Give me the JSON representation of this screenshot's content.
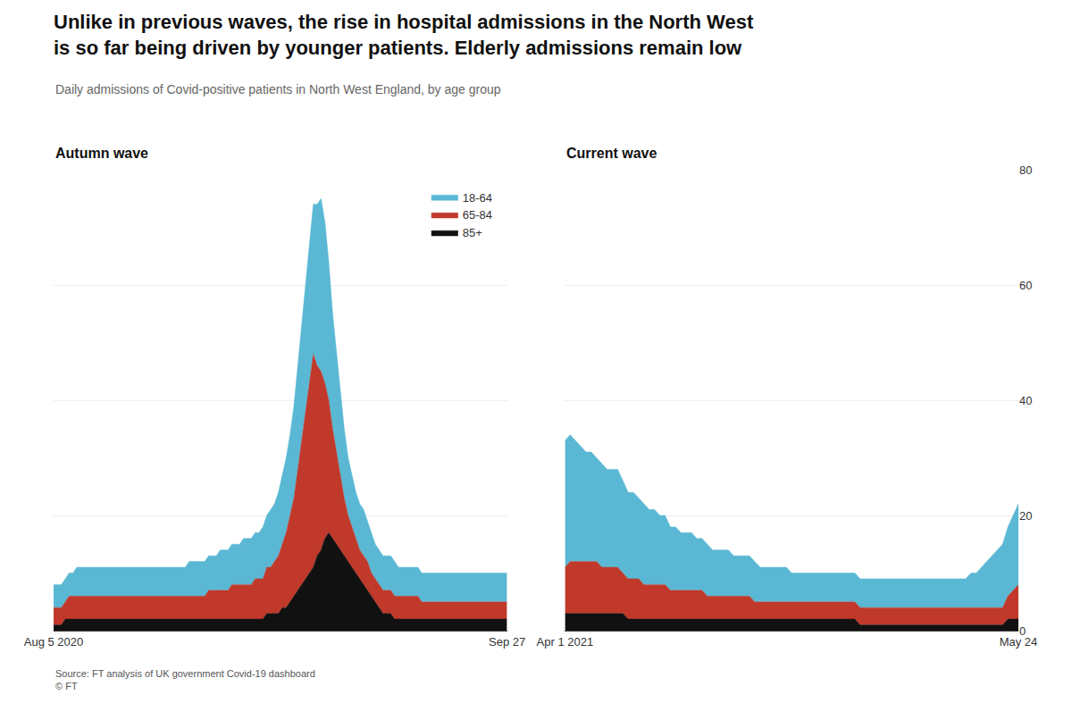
{
  "title": "Unlike in previous waves, the rise in hospital admissions in the North West\nis so far being driven by younger patients. Elderly admissions remain low",
  "subtitle": "Daily admissions of Covid-positive patients in North West England, by age group",
  "annotations": [
    "Source: FT analysis of UK government Covid-19 dashboard\n© FT"
  ],
  "chart_data": [
    {
      "type": "area",
      "stacked": true,
      "title": "Autumn wave",
      "xlim": [
        0,
        117
      ],
      "xticks": [
        {
          "value": 0,
          "label": "Aug 5 2020"
        },
        {
          "value": 117,
          "label": "Sep 27"
        }
      ],
      "ylim": [
        0,
        80
      ],
      "yticks": [
        0,
        20,
        40,
        60,
        80
      ],
      "grid": true,
      "tick_labels": "x",
      "legend": "upper right",
      "series": [
        {
          "name": "85+",
          "color": "#111111",
          "values": [
            1,
            1,
            1,
            2,
            2,
            2,
            2,
            2,
            2,
            2,
            2,
            2,
            2,
            2,
            2,
            2,
            2,
            2,
            2,
            2,
            2,
            2,
            2,
            2,
            2,
            2,
            2,
            2,
            2,
            2,
            2,
            2,
            2,
            2,
            2,
            2,
            2,
            2,
            2,
            2,
            2,
            2,
            2,
            2,
            2,
            2,
            2,
            2,
            2,
            2,
            2,
            2,
            2,
            2,
            2,
            3,
            3,
            3,
            3,
            4,
            4,
            5,
            6,
            7,
            8,
            9,
            10,
            11,
            13,
            14,
            16,
            17,
            16,
            15,
            14,
            13,
            12,
            11,
            10,
            9,
            8,
            7,
            6,
            5,
            4,
            3,
            3,
            3,
            2,
            2,
            2,
            2,
            2,
            2,
            2,
            2,
            2,
            2,
            2,
            2,
            2,
            2,
            2,
            2,
            2,
            2,
            2,
            2,
            2,
            2,
            2,
            2,
            2,
            2,
            2,
            2,
            2,
            2
          ]
        },
        {
          "name": "65-84",
          "color": "#c0392b",
          "values": [
            3,
            3,
            3,
            3,
            4,
            4,
            4,
            4,
            4,
            4,
            4,
            4,
            4,
            4,
            4,
            4,
            4,
            4,
            4,
            4,
            4,
            4,
            4,
            4,
            4,
            4,
            4,
            4,
            4,
            4,
            4,
            4,
            4,
            4,
            4,
            4,
            4,
            4,
            4,
            4,
            5,
            5,
            5,
            5,
            5,
            5,
            6,
            6,
            6,
            6,
            6,
            6,
            7,
            7,
            7,
            8,
            8,
            9,
            10,
            11,
            13,
            15,
            17,
            21,
            25,
            29,
            33,
            37,
            33,
            31,
            27,
            23,
            19,
            16,
            13,
            10,
            8,
            7,
            6,
            5,
            5,
            5,
            4,
            4,
            4,
            4,
            4,
            4,
            4,
            4,
            4,
            4,
            4,
            4,
            4,
            3,
            3,
            3,
            3,
            3,
            3,
            3,
            3,
            3,
            3,
            3,
            3,
            3,
            3,
            3,
            3,
            3,
            3,
            3,
            3,
            3,
            3,
            3
          ]
        },
        {
          "name": "18-64",
          "color": "#5bb8d4",
          "values": [
            4,
            4,
            4,
            4,
            4,
            4,
            5,
            5,
            5,
            5,
            5,
            5,
            5,
            5,
            5,
            5,
            5,
            5,
            5,
            5,
            5,
            5,
            5,
            5,
            5,
            5,
            5,
            5,
            5,
            5,
            5,
            5,
            5,
            5,
            5,
            6,
            6,
            6,
            6,
            6,
            6,
            6,
            6,
            7,
            7,
            7,
            7,
            7,
            7,
            8,
            8,
            8,
            8,
            8,
            9,
            9,
            10,
            10,
            11,
            12,
            13,
            14,
            16,
            18,
            20,
            22,
            24,
            26,
            28,
            30,
            28,
            24,
            20,
            17,
            14,
            12,
            10,
            9,
            8,
            8,
            8,
            7,
            7,
            6,
            6,
            6,
            6,
            6,
            6,
            5,
            5,
            5,
            5,
            5,
            5,
            5,
            5,
            5,
            5,
            5,
            5,
            5,
            5,
            5,
            5,
            5,
            5,
            5,
            5,
            5,
            5,
            5,
            5,
            5,
            5,
            5,
            5,
            5
          ]
        }
      ]
    },
    {
      "type": "area",
      "stacked": true,
      "title": "Current wave",
      "xlim": [
        0,
        86
      ],
      "xticks": [
        {
          "value": 0,
          "label": "Apr 1 2021"
        },
        {
          "value": 86,
          "label": "May 24"
        }
      ],
      "ylim": [
        0,
        80
      ],
      "yticks": [
        0,
        20,
        40,
        60,
        80
      ],
      "grid": true,
      "series": [
        {
          "color": "#111111",
          "values": [
            3,
            3,
            3,
            3,
            3,
            3,
            3,
            3,
            3,
            3,
            3,
            3,
            2,
            2,
            2,
            2,
            2,
            2,
            2,
            2,
            2,
            2,
            2,
            2,
            2,
            2,
            2,
            2,
            2,
            2,
            2,
            2,
            2,
            2,
            2,
            2,
            2,
            2,
            2,
            2,
            2,
            2,
            2,
            2,
            2,
            2,
            2,
            2,
            2,
            2,
            2,
            2,
            2,
            2,
            2,
            2,
            1,
            1,
            1,
            1,
            1,
            1,
            1,
            1,
            1,
            1,
            1,
            1,
            1,
            1,
            1,
            1,
            1,
            1,
            1,
            1,
            1,
            1,
            1,
            1,
            1,
            1,
            1,
            1,
            2,
            2,
            2
          ]
        },
        {
          "color": "#c0392b",
          "values": [
            8,
            9,
            9,
            9,
            9,
            9,
            9,
            8,
            8,
            8,
            8,
            7,
            7,
            7,
            7,
            6,
            6,
            6,
            6,
            6,
            5,
            5,
            5,
            5,
            5,
            5,
            5,
            4,
            4,
            4,
            4,
            4,
            4,
            4,
            4,
            4,
            3,
            3,
            3,
            3,
            3,
            3,
            3,
            3,
            3,
            3,
            3,
            3,
            3,
            3,
            3,
            3,
            3,
            3,
            3,
            3,
            3,
            3,
            3,
            3,
            3,
            3,
            3,
            3,
            3,
            3,
            3,
            3,
            3,
            3,
            3,
            3,
            3,
            3,
            3,
            3,
            3,
            3,
            3,
            3,
            3,
            3,
            3,
            3,
            4,
            5,
            6
          ]
        },
        {
          "color": "#5bb8d4",
          "values": [
            22,
            22,
            21,
            20,
            19,
            19,
            18,
            18,
            17,
            17,
            17,
            16,
            15,
            15,
            14,
            14,
            13,
            13,
            12,
            12,
            11,
            11,
            10,
            10,
            10,
            9,
            9,
            9,
            8,
            8,
            8,
            8,
            7,
            7,
            7,
            7,
            7,
            6,
            6,
            6,
            6,
            6,
            6,
            5,
            5,
            5,
            5,
            5,
            5,
            5,
            5,
            5,
            5,
            5,
            5,
            5,
            5,
            5,
            5,
            5,
            5,
            5,
            5,
            5,
            5,
            5,
            5,
            5,
            5,
            5,
            5,
            5,
            5,
            5,
            5,
            5,
            5,
            6,
            6,
            7,
            8,
            9,
            10,
            11,
            12,
            13,
            14
          ]
        }
      ]
    }
  ]
}
